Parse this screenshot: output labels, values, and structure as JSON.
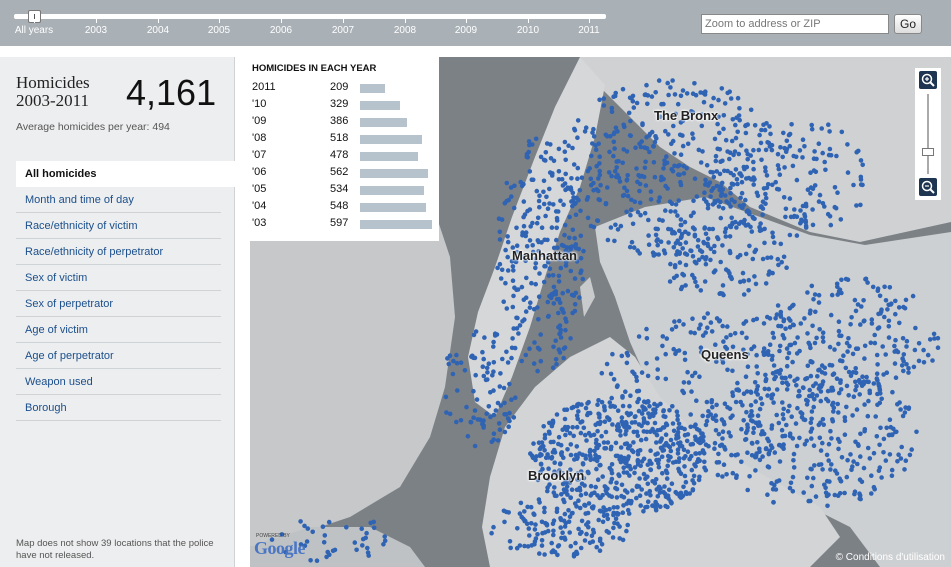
{
  "timeline": {
    "labels": [
      "All years",
      "2003",
      "2004",
      "2005",
      "2006",
      "2007",
      "2008",
      "2009",
      "2010",
      "2011"
    ]
  },
  "search": {
    "placeholder": "Zoom to address or ZIP",
    "go_label": "Go"
  },
  "summary": {
    "title_line1": "Homicides",
    "title_line2": "2003-2011",
    "total": "4,161",
    "average": "Average homicides per year: 494"
  },
  "menu": [
    "All homicides",
    "Month and time of day",
    "Race/ethnicity of victim",
    "Race/ethnicity of perpetrator",
    "Sex of victim",
    "Sex of perpetrator",
    "Age of victim",
    "Age of perpetrator",
    "Weapon used",
    "Borough"
  ],
  "footnote": "Map does not show 39 locations that the police have not released.",
  "yearly": {
    "heading": "HOMICIDES IN EACH YEAR",
    "rows": [
      {
        "year": "2011",
        "value": 209
      },
      {
        "year": "'10",
        "value": 329
      },
      {
        "year": "'09",
        "value": 386
      },
      {
        "year": "'08",
        "value": 518
      },
      {
        "year": "'07",
        "value": 478
      },
      {
        "year": "'06",
        "value": 562
      },
      {
        "year": "'05",
        "value": 534
      },
      {
        "year": "'04",
        "value": 548
      },
      {
        "year": "'03",
        "value": 597
      }
    ]
  },
  "map": {
    "boroughs": [
      "The Bronx",
      "Manhattan",
      "Queens",
      "Brooklyn"
    ],
    "attribution": "© Conditions d'utilisation",
    "powered_by": "POWERED BY",
    "logo": "Google",
    "dot_color": "#2f63b3"
  }
}
